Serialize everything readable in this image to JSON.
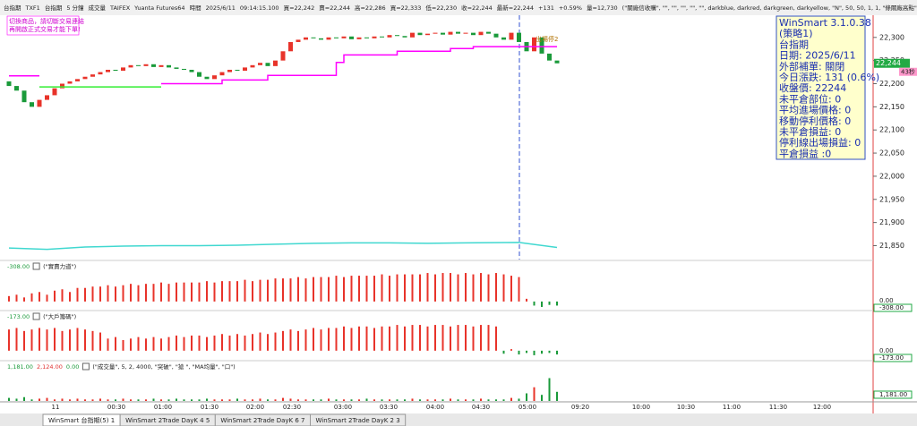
{
  "toolbar": {
    "items": [
      "台指期",
      "TXF1",
      "台指期",
      "5 分鐘",
      "成交量",
      "TAIFEX",
      "Yuanta Futures64",
      "時間",
      "2025/6/11",
      "09:14:15.100",
      "買=22,242",
      "賣=22,244",
      "高=22,286",
      "買=22,333",
      "低=22,230",
      "收=22,244",
      "最新=22,244",
      "+131",
      "+0.59%",
      "量=12,730",
      "(\"關廠信收購\", \"\", \"\", \"\", \"\", \"\", darkblue, darkred, darkgreen, darkyellow, \"N\", 50, 50, 1, 1, \"條關廠高點\", \"條關"
    ]
  },
  "warning": [
    "切換商品，請切斷交易連結",
    "再開啟正式交易才能下單!"
  ],
  "info_box": [
    "WinSmart 3.1.0.38",
    "(策略1)",
    "台指期",
    "日期: 2025/6/11",
    "外部補單: 關閉",
    "今日漲跌: 131 (0.6%)",
    "收盤價: 22244",
    "未平倉部位: 0",
    "平均進場價格: 0",
    "移動停利價格: 0",
    "未平倉損益: 0",
    "停利線出場損益: 0",
    "平倉損益 :0"
  ],
  "chart_data": {
    "type": "candlestick",
    "open": 22205,
    "closes": [
      22195,
      22185,
      22160,
      22150,
      22165,
      22175,
      22190,
      22200,
      22205,
      22210,
      22215,
      22220,
      22225,
      22230,
      22228,
      22235,
      22240,
      22238,
      22242,
      22236,
      22240,
      22235,
      22232,
      22230,
      22225,
      22215,
      22210,
      22218,
      22225,
      22230,
      22228,
      22235,
      22240,
      22245,
      22238,
      22250,
      22270,
      22290,
      22295,
      22300,
      22298,
      22295,
      22300,
      22298,
      22302,
      22296,
      22300,
      22298,
      22302,
      22300,
      22305,
      22303,
      22300,
      22310,
      22305,
      22308,
      22310,
      22306,
      22312,
      22308,
      22310,
      22305,
      22312,
      22308,
      22300,
      22295,
      22310,
      22290,
      22270,
      22300,
      22265,
      22250,
      22244
    ],
    "up_color": "#e8332a",
    "down_color": "#1a9a3a",
    "ylim": [
      21820,
      22346
    ],
    "yticks": [
      {
        "value": 22300,
        "label": "22,300"
      },
      {
        "value": 22250,
        "label": "22,250"
      },
      {
        "value": 22200,
        "label": "22,200"
      },
      {
        "value": 22150,
        "label": "22,150"
      },
      {
        "value": 22100,
        "label": "22,100"
      },
      {
        "value": 22050,
        "label": "22,050"
      },
      {
        "value": 22000,
        "label": "22,000"
      },
      {
        "value": 21950,
        "label": "21,950"
      },
      {
        "value": 21900,
        "label": "21,900"
      },
      {
        "value": 21850,
        "label": "21,850"
      }
    ],
    "series": [
      {
        "color": "#ff00ff",
        "values": [
          22217,
          22217,
          22217,
          22217,
          22217,
          null,
          null,
          null,
          null,
          null,
          null,
          null,
          null,
          null,
          null,
          null,
          null,
          null,
          null,
          null,
          22200,
          22200,
          22200,
          22200,
          22200,
          22200,
          22200,
          22200,
          22208,
          22208,
          22208,
          22208,
          22208,
          22208,
          22218,
          22218,
          22218,
          22218,
          22218,
          22218,
          22218,
          22218,
          22218,
          22246,
          22262,
          22262,
          22262,
          22262,
          22262,
          22262,
          22262,
          22270,
          22270,
          22270,
          22270,
          22270,
          22270,
          22270,
          22276,
          22276,
          22276,
          22280,
          22280,
          22280,
          22280,
          22280,
          22280,
          22280,
          22280,
          22280,
          22280,
          22280,
          22280
        ]
      },
      {
        "color": "#33ee33",
        "values": [
          null,
          null,
          null,
          null,
          22193,
          22193,
          22193,
          22193,
          22193,
          22193,
          22193,
          22193,
          22193,
          22193,
          22193,
          22193,
          22193,
          22193,
          22193,
          22193,
          22193,
          null,
          null,
          null,
          null,
          null,
          null,
          null,
          null,
          null,
          null,
          null,
          null,
          null,
          null,
          null,
          null,
          null,
          null,
          null,
          null,
          null,
          null,
          null,
          null,
          null,
          null,
          null,
          null,
          null,
          null,
          null,
          null,
          null,
          null,
          null,
          null,
          null,
          null,
          null,
          null,
          null,
          null,
          null,
          null,
          null,
          null,
          null,
          null,
          null,
          null,
          null,
          null
        ]
      },
      {
        "color": "#40d8d0",
        "x": [
          0,
          5,
          10,
          15,
          20,
          25,
          30,
          35,
          40,
          45,
          50,
          55,
          60,
          67,
          72
        ],
        "values": [
          21845,
          21842,
          21847,
          21849,
          21850,
          21850,
          21851,
          21853,
          21855,
          21856,
          21856,
          21855,
          21856,
          21857,
          21846
        ]
      }
    ],
    "last_price_label": "22,244",
    "timer_label": "43秒",
    "annotation": "出場停2",
    "panes": [
      {
        "labels": [
          "-308.00"
        ],
        "title": "(\"實賣力道\")",
        "axis_labels": [
          "0.00",
          "-308.00"
        ],
        "ylim": [
          -12,
          46
        ],
        "values": [
          8,
          10,
          6,
          12,
          14,
          10,
          16,
          18,
          14,
          20,
          20,
          22,
          22,
          24,
          22,
          24,
          26,
          24,
          26,
          26,
          28,
          26,
          28,
          28,
          28,
          28,
          30,
          28,
          30,
          30,
          30,
          32,
          30,
          32,
          32,
          34,
          34,
          34,
          36,
          34,
          36,
          36,
          36,
          38,
          36,
          38,
          38,
          38,
          38,
          40,
          38,
          40,
          40,
          40,
          40,
          42,
          40,
          42,
          42,
          40,
          42,
          40,
          42,
          40,
          42,
          40,
          38,
          36,
          4,
          -6,
          -8,
          -5,
          -6
        ]
      },
      {
        "labels": [
          "-173.00"
        ],
        "title": "(\"大戶籌碼\")",
        "axis_labels": [
          "0.00",
          "-173.00"
        ],
        "ylim": [
          -12,
          40
        ],
        "values": [
          28,
          30,
          26,
          28,
          30,
          28,
          30,
          26,
          28,
          30,
          28,
          26,
          24,
          16,
          18,
          14,
          16,
          18,
          16,
          18,
          16,
          18,
          20,
          18,
          20,
          20,
          18,
          20,
          22,
          20,
          22,
          20,
          22,
          24,
          22,
          24,
          26,
          28,
          26,
          28,
          30,
          28,
          30,
          30,
          32,
          30,
          32,
          32,
          30,
          32,
          32,
          34,
          32,
          34,
          34,
          32,
          34,
          34,
          32,
          34,
          34,
          32,
          34,
          34,
          32,
          -4,
          2,
          -5,
          -3,
          -6,
          -4,
          -3,
          -5
        ]
      },
      {
        "labels": [
          "1,181.00",
          "2,124.00",
          "0.00"
        ],
        "title": "(\"成交量\", 5, 2, 4000, \"突破\", \"搶 \", \"MA均量\", \"口\")",
        "axis_labels": [
          "1,181.00"
        ],
        "ylim": [
          0,
          40
        ],
        "values": [
          4,
          3,
          5,
          2,
          3,
          4,
          2,
          3,
          2,
          3,
          2,
          2,
          3,
          2,
          2,
          3,
          2,
          2,
          2,
          3,
          2,
          2,
          3,
          2,
          2,
          2,
          3,
          2,
          2,
          2,
          3,
          2,
          2,
          3,
          2,
          2,
          4,
          3,
          2,
          2,
          2,
          2,
          3,
          2,
          2,
          2,
          2,
          3,
          2,
          2,
          2,
          2,
          2,
          3,
          2,
          2,
          2,
          2,
          3,
          2,
          2,
          2,
          3,
          2,
          2,
          2,
          4,
          3,
          10,
          18,
          8,
          30,
          12
        ]
      }
    ],
    "time_labels": [
      "11",
      "00:30",
      "01:00",
      "01:30",
      "02:00",
      "02:30",
      "03:00",
      "03:30",
      "04:00",
      "04:30",
      "05:00",
      "09:20",
      "10:00",
      "10:30",
      "11:00",
      "11:30",
      "12:00"
    ]
  },
  "tabs": [
    "WinSmart 台指期(5) 1",
    "WinSmart 2Trade DayK 4 5",
    "WinSmart 2Trade DayK 6 7",
    "WinSmart 2Trade DayK 2 3"
  ]
}
